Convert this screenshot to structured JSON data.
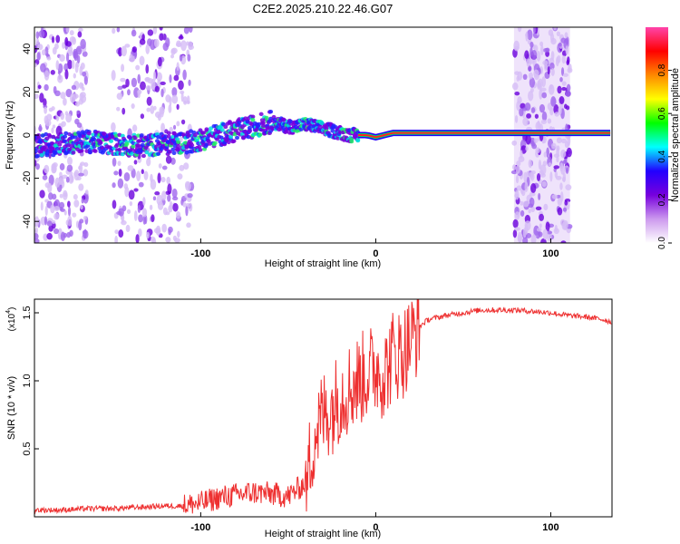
{
  "title": "C2E2.2025.210.22.46.G07",
  "chart_data": [
    {
      "type": "heatmap",
      "xlabel": "Height of straight line (km)",
      "ylabel": "Frequency (Hz)",
      "xlim": [
        -195,
        135
      ],
      "ylim": [
        -50,
        50
      ],
      "x_ticks": [
        -100,
        0,
        100
      ],
      "y_ticks": [
        -40,
        -20,
        0,
        20,
        40
      ],
      "colorbar": {
        "label": "Normalized spectral amplitude",
        "range": [
          0,
          1
        ],
        "ticks": [
          0.0,
          0.2,
          0.4,
          0.6,
          0.8
        ],
        "tick_labels": [
          "0.0",
          "0.2",
          "0.4",
          "0.6",
          "0.8"
        ],
        "colormap": [
          "#ffffff",
          "#cc99ee",
          "#7700dd",
          "#2200ff",
          "#00ffff",
          "#00ff00",
          "#ffff00",
          "#ff8800",
          "#ff0000",
          "#ff44aa"
        ]
      },
      "ridge": {
        "x": [
          -195,
          -180,
          -165,
          -150,
          -135,
          -120,
          -105,
          -90,
          -80,
          -70,
          -60,
          -55,
          -50,
          -45,
          -40,
          -35,
          -30,
          -25,
          -20,
          -15,
          -10,
          -5,
          0,
          5,
          10,
          20,
          30,
          40,
          50,
          60,
          70,
          75,
          80,
          85,
          90,
          95,
          100,
          105,
          110,
          115,
          120,
          125,
          130,
          135
        ],
        "y": [
          -5,
          -4,
          -3,
          -4,
          -5,
          -4,
          -3,
          0,
          2,
          4,
          6,
          5,
          4,
          4,
          5,
          4,
          3,
          2,
          1,
          0,
          0,
          0,
          -1,
          0,
          1,
          1,
          1,
          1,
          1,
          1,
          1,
          1,
          1,
          1,
          1,
          1,
          1,
          1,
          1,
          1,
          1,
          1,
          1,
          1
        ]
      },
      "noise_bands_km": [
        [
          -195,
          -165
        ],
        [
          -150,
          -105
        ],
        [
          79,
          111
        ]
      ]
    },
    {
      "type": "line",
      "xlabel": "Height of straight line (km)",
      "ylabel": "SNR (10 * v/v)",
      "y_multiplier_label": "(x10",
      "y_multiplier_exp": "4",
      "y_multiplier_close": ")",
      "xlim": [
        -195,
        135
      ],
      "ylim": [
        0,
        1.6
      ],
      "x_ticks": [
        -100,
        0,
        100
      ],
      "y_ticks": [
        0.5,
        1.0,
        1.5
      ],
      "y_tick_labels": [
        "0.5",
        "1.0",
        "1.5"
      ],
      "color": "#ee3030",
      "series": [
        {
          "x": [
            -195,
            -180,
            -165,
            -150,
            -135,
            -120,
            -110,
            -100,
            -90,
            -80,
            -70,
            -60,
            -50,
            -45,
            -40,
            -35,
            -30,
            -25,
            -20,
            -15,
            -10,
            -5,
            0,
            5,
            10,
            15,
            20,
            25,
            30,
            40,
            50,
            60,
            70,
            80,
            90,
            100,
            110,
            120,
            130,
            135
          ],
          "y": [
            0.05,
            0.05,
            0.06,
            0.06,
            0.07,
            0.08,
            0.08,
            0.1,
            0.14,
            0.16,
            0.18,
            0.17,
            0.15,
            0.2,
            0.25,
            0.6,
            0.75,
            0.8,
            0.9,
            0.95,
            1.0,
            1.05,
            1.1,
            1.05,
            1.2,
            1.2,
            1.3,
            1.4,
            1.45,
            1.48,
            1.5,
            1.52,
            1.52,
            1.52,
            1.51,
            1.5,
            1.48,
            1.47,
            1.45,
            1.43
          ]
        }
      ]
    }
  ]
}
